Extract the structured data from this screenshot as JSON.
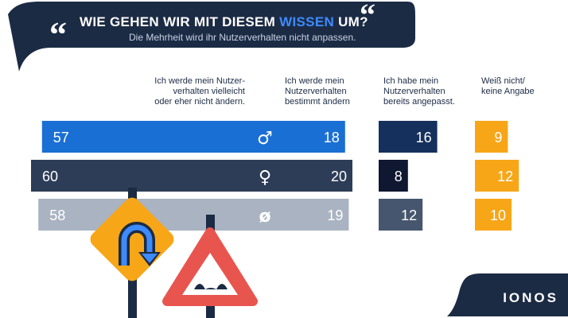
{
  "header": {
    "title_prefix": "WIE GEHEN WIR MIT DIESEM ",
    "title_highlight": "WISSEN",
    "title_suffix": " UM?",
    "subtitle": "Die Mehrheit wird ihr Nutzerverhalten nicht anpassen.",
    "quote_icon": "quote-marks-icon"
  },
  "columns": [
    [
      "Ich werde mein Nutzer-",
      "verhalten vielleicht",
      "oder eher nicht ändern."
    ],
    [
      "Ich werde mein",
      "Nutzerverhalten",
      "bestimmt ändern"
    ],
    [
      "Ich habe mein",
      "Nutzerverhalten",
      "bereits angepasst."
    ],
    [
      "Weiß nicht/",
      "keine Angabe"
    ]
  ],
  "chart_data": {
    "type": "bar",
    "orientation": "horizontal",
    "layout": "grouped-columns",
    "categories": [
      "♂",
      "♀",
      "ø"
    ],
    "category_icons": [
      "male-icon",
      "female-icon",
      "average-icon"
    ],
    "series": [
      {
        "values": [
          57,
          60,
          58
        ]
      },
      {
        "values": [
          18,
          20,
          19
        ]
      },
      {
        "values": [
          16,
          8,
          12
        ]
      },
      {
        "values": [
          9,
          12,
          10
        ]
      }
    ],
    "unit": "%"
  },
  "colors": {
    "navy": "#1c2b44",
    "accent_blue": "#3d8bff",
    "male_series": [
      "#1a6fd4",
      "#1a6fd4",
      "#15305c",
      "#f7a618"
    ],
    "female_series": [
      "#2d3d57",
      "#2d3d57",
      "#0f1830",
      "#f7a618"
    ],
    "average_series": [
      "#a9b3c2",
      "#a9b3c2",
      "#46566e",
      "#f7a618"
    ],
    "sign_yellow": "#f7a618",
    "sign_red": "#e8554e"
  },
  "decorations": {
    "signs": [
      "u-turn-sign-icon",
      "uneven-road-sign-icon"
    ]
  },
  "brand": {
    "logo": "IONOS"
  }
}
